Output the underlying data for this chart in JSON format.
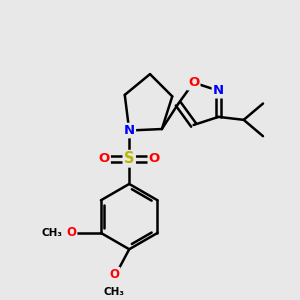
{
  "bg_color": "#e8e8e8",
  "bond_color": "#000000",
  "N_color": "#0000ff",
  "O_color": "#ff0000",
  "S_color": "#b8b800",
  "line_width": 1.8,
  "figsize": [
    3.0,
    3.0
  ],
  "dpi": 100,
  "xlim": [
    0,
    10
  ],
  "ylim": [
    0,
    10
  ]
}
